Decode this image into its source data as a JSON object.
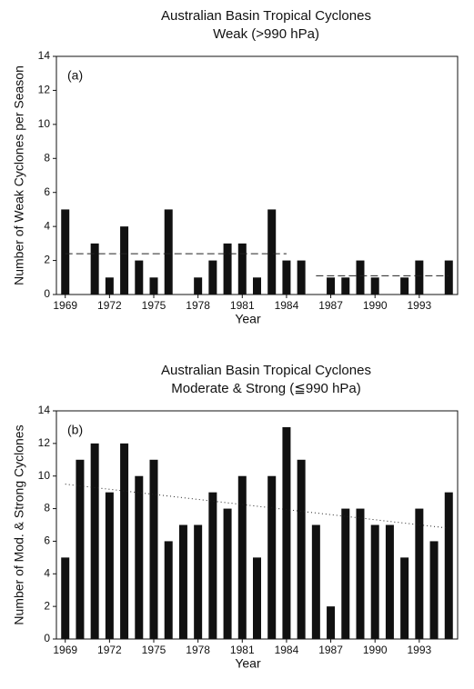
{
  "chart_data": [
    {
      "type": "bar",
      "title": "Australian Basin Tropical Cyclones",
      "subtitle": "Weak (>990 hPa)",
      "annotation": "(a)",
      "x_label": "Year",
      "y_label": "Number of Weak Cyclones per Season",
      "color": "#111111",
      "x": [
        1969,
        1970,
        1971,
        1972,
        1973,
        1974,
        1975,
        1976,
        1977,
        1978,
        1979,
        1980,
        1981,
        1982,
        1983,
        1984,
        1985,
        1986,
        1987,
        1988,
        1989,
        1990,
        1991,
        1992,
        1993,
        1994,
        1995
      ],
      "values": [
        5,
        0,
        3,
        1,
        4,
        2,
        1,
        5,
        0,
        1,
        2,
        3,
        3,
        1,
        5,
        2,
        2,
        0,
        1,
        1,
        2,
        1,
        0,
        1,
        2,
        0,
        2
      ],
      "xlim": [
        1968.4,
        1995.6
      ],
      "xticks": [
        1969,
        1972,
        1975,
        1978,
        1981,
        1984,
        1987,
        1990,
        1993
      ],
      "ylim": [
        0,
        14
      ],
      "yticks": [
        0,
        2,
        4,
        6,
        8,
        10,
        12,
        14
      ],
      "mean_lines": [
        {
          "x": [
            1969,
            1984
          ],
          "values": [
            2.4,
            2.4
          ]
        },
        {
          "x": [
            1986,
            1995
          ],
          "values": [
            1.1,
            1.1
          ]
        }
      ]
    },
    {
      "type": "bar",
      "title": "Australian Basin Tropical Cyclones",
      "subtitle": "Moderate & Strong (≦990 hPa)",
      "annotation": "(b)",
      "x_label": "Year",
      "y_label": "Number of Mod. & Strong Cyclones",
      "color": "#111111",
      "x": [
        1969,
        1970,
        1971,
        1972,
        1973,
        1974,
        1975,
        1976,
        1977,
        1978,
        1979,
        1980,
        1981,
        1982,
        1983,
        1984,
        1985,
        1986,
        1987,
        1988,
        1989,
        1990,
        1991,
        1992,
        1993,
        1994,
        1995
      ],
      "values": [
        5,
        11,
        12,
        9,
        12,
        10,
        11,
        6,
        7,
        7,
        9,
        8,
        10,
        5,
        10,
        13,
        11,
        7,
        2,
        8,
        8,
        7,
        7,
        5,
        8,
        6,
        9
      ],
      "xlim": [
        1968.4,
        1995.6
      ],
      "xticks": [
        1969,
        1972,
        1975,
        1978,
        1981,
        1984,
        1987,
        1990,
        1993
      ],
      "ylim": [
        0,
        14
      ],
      "yticks": [
        0,
        2,
        4,
        6,
        8,
        10,
        12,
        14
      ],
      "trend": {
        "x": [
          1969,
          1995
        ],
        "values": [
          9.5,
          6.8
        ]
      }
    }
  ]
}
